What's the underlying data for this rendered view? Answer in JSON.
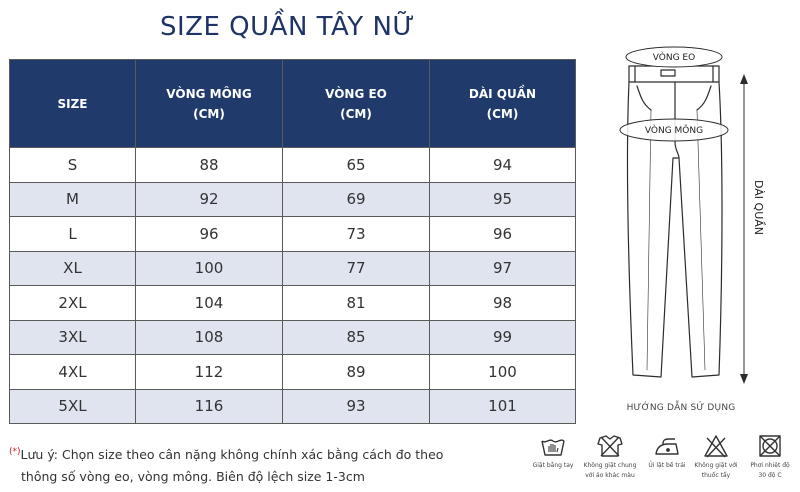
{
  "title": "SIZE QUẦN TÂY NỮ",
  "table": {
    "headers": [
      {
        "line1": "SIZE",
        "line2": ""
      },
      {
        "line1": "VÒNG MÔNG",
        "line2": "(CM)"
      },
      {
        "line1": "VÒNG EO",
        "line2": "(CM)"
      },
      {
        "line1": "DÀI QUẦN",
        "line2": "(CM)"
      }
    ],
    "rows": [
      [
        "S",
        "88",
        "65",
        "94"
      ],
      [
        "M",
        "92",
        "69",
        "95"
      ],
      [
        "L",
        "96",
        "73",
        "96"
      ],
      [
        "XL",
        "100",
        "77",
        "97"
      ],
      [
        "2XL",
        "104",
        "81",
        "98"
      ],
      [
        "3XL",
        "108",
        "85",
        "99"
      ],
      [
        "4XL",
        "112",
        "89",
        "100"
      ],
      [
        "5XL",
        "116",
        "93",
        "101"
      ]
    ]
  },
  "diagram": {
    "waist_label": "VÒNG EO",
    "hip_label": "VÒNG MÔNG",
    "length_label": "DÀI QUẦN",
    "caption": "HƯỚNG DẪN SỬ DỤNG",
    "line_color": "#2c2c2c"
  },
  "note": {
    "marker": "(*)",
    "line1": "Lưu ý: Chọn size theo cân nặng không chính xác bằng cách đo theo",
    "line2": "thông số vòng eo, vòng mông. Biên độ lệch size 1-3cm"
  },
  "care": [
    {
      "icon": "hand-wash-icon",
      "label1": "Giặt bằng tay",
      "label2": ""
    },
    {
      "icon": "no-mix-wash-icon",
      "label1": "Không giặt chung",
      "label2": "với áo khác màu"
    },
    {
      "icon": "iron-reverse-icon",
      "label1": "Ủi lật bề trái",
      "label2": ""
    },
    {
      "icon": "no-bleach-icon",
      "label1": "Không giặt với",
      "label2": "thuốc tẩy"
    },
    {
      "icon": "no-tumble-dry-icon",
      "label1": "Phơi nhiệt độ",
      "label2": "30 độ C"
    }
  ],
  "colors": {
    "header_bg": "#1f3a6b",
    "title": "#1f3466",
    "stripe": "#dfe4ee",
    "note_marker": "#d02020"
  }
}
